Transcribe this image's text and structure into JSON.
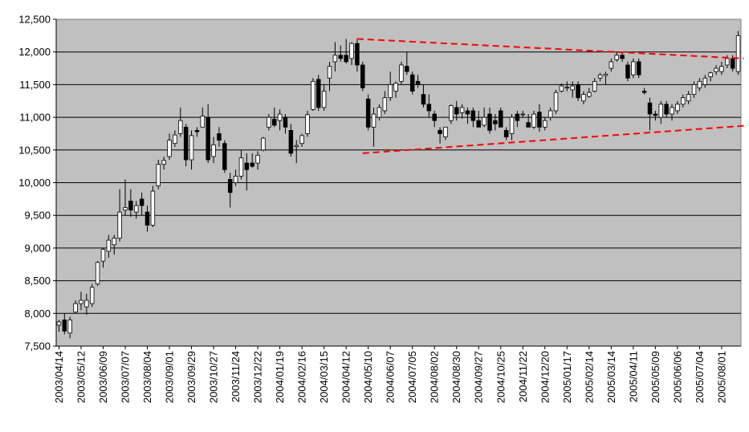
{
  "chart_data": {
    "type": "candlestick",
    "interval": "weekly",
    "title": "",
    "xlabel": "",
    "ylabel": "",
    "ylim": [
      7500,
      12500
    ],
    "y_ticks": [
      7500,
      8000,
      8500,
      9000,
      9500,
      10000,
      10500,
      11000,
      11500,
      12000,
      12500
    ],
    "y_tick_labels": [
      "7,500",
      "8,000",
      "8,500",
      "9,000",
      "9,500",
      "10,000",
      "10,500",
      "11,000",
      "11,500",
      "12,000",
      "12,500"
    ],
    "x_tick_labels": [
      "2003/04/14",
      "2003/05/12",
      "2003/06/09",
      "2003/07/07",
      "2003/08/04",
      "2003/09/01",
      "2003/09/29",
      "2003/10/27",
      "2003/11/24",
      "2003/12/22",
      "2004/01/19",
      "2004/02/16",
      "2004/03/15",
      "2004/04/12",
      "2004/05/10",
      "2004/06/07",
      "2004/07/05",
      "2004/08/02",
      "2004/08/30",
      "2004/09/27",
      "2004/10/25",
      "2004/11/22",
      "2004/12/20",
      "2005/01/17",
      "2005/02/14",
      "2005/03/14",
      "2005/04/11",
      "2005/05/09",
      "2005/06/06",
      "2005/07/04",
      "2005/08/01"
    ],
    "grid": true,
    "legend": "none",
    "colors": {
      "plot_bg": "#c0c0c0",
      "up": "#ffffff",
      "down": "#000000",
      "grid": "#000000",
      "trendline": "#ff0000"
    },
    "candles": [
      {
        "o": 7820,
        "h": 7900,
        "l": 7720,
        "c": 7870
      },
      {
        "o": 7900,
        "h": 8000,
        "l": 7680,
        "c": 7730
      },
      {
        "o": 7700,
        "h": 7950,
        "l": 7620,
        "c": 7900
      },
      {
        "o": 8020,
        "h": 8200,
        "l": 8000,
        "c": 8150
      },
      {
        "o": 8150,
        "h": 8330,
        "l": 8050,
        "c": 8200
      },
      {
        "o": 8100,
        "h": 8300,
        "l": 7980,
        "c": 8200
      },
      {
        "o": 8150,
        "h": 8450,
        "l": 8100,
        "c": 8400
      },
      {
        "o": 8450,
        "h": 8800,
        "l": 8420,
        "c": 8780
      },
      {
        "o": 8800,
        "h": 9000,
        "l": 8700,
        "c": 8980
      },
      {
        "o": 8950,
        "h": 9200,
        "l": 8850,
        "c": 9120
      },
      {
        "o": 9050,
        "h": 9200,
        "l": 8900,
        "c": 9150
      },
      {
        "o": 9150,
        "h": 9900,
        "l": 9100,
        "c": 9550
      },
      {
        "o": 9580,
        "h": 10050,
        "l": 9500,
        "c": 9620
      },
      {
        "o": 9720,
        "h": 9900,
        "l": 9480,
        "c": 9580
      },
      {
        "o": 9550,
        "h": 9720,
        "l": 9450,
        "c": 9650
      },
      {
        "o": 9750,
        "h": 9850,
        "l": 9500,
        "c": 9650
      },
      {
        "o": 9550,
        "h": 9650,
        "l": 9250,
        "c": 9350
      },
      {
        "o": 9350,
        "h": 9950,
        "l": 9320,
        "c": 9870
      },
      {
        "o": 9950,
        "h": 10350,
        "l": 9900,
        "c": 10280
      },
      {
        "o": 10280,
        "h": 10400,
        "l": 10200,
        "c": 10340
      },
      {
        "o": 10400,
        "h": 10750,
        "l": 10350,
        "c": 10650
      },
      {
        "o": 10600,
        "h": 10800,
        "l": 10550,
        "c": 10730
      },
      {
        "o": 10750,
        "h": 11150,
        "l": 10700,
        "c": 10950
      },
      {
        "o": 10850,
        "h": 10900,
        "l": 10250,
        "c": 10350
      },
      {
        "o": 10350,
        "h": 10800,
        "l": 10200,
        "c": 10720
      },
      {
        "o": 10800,
        "h": 10850,
        "l": 10700,
        "c": 10780
      },
      {
        "o": 10850,
        "h": 11150,
        "l": 10850,
        "c": 11020
      },
      {
        "o": 11000,
        "h": 11200,
        "l": 10300,
        "c": 10350
      },
      {
        "o": 10400,
        "h": 10700,
        "l": 10300,
        "c": 10580
      },
      {
        "o": 10750,
        "h": 10850,
        "l": 10550,
        "c": 10650
      },
      {
        "o": 10600,
        "h": 10650,
        "l": 10150,
        "c": 10200
      },
      {
        "o": 10050,
        "h": 10150,
        "l": 9620,
        "c": 9850
      },
      {
        "o": 10000,
        "h": 10200,
        "l": 9950,
        "c": 10100
      },
      {
        "o": 10100,
        "h": 10500,
        "l": 10050,
        "c": 10380
      },
      {
        "o": 10300,
        "h": 10450,
        "l": 9880,
        "c": 10200
      },
      {
        "o": 10300,
        "h": 10450,
        "l": 10230,
        "c": 10250
      },
      {
        "o": 10300,
        "h": 10480,
        "l": 10200,
        "c": 10420
      },
      {
        "o": 10500,
        "h": 10700,
        "l": 10480,
        "c": 10680
      },
      {
        "o": 10850,
        "h": 11050,
        "l": 10800,
        "c": 11000
      },
      {
        "o": 10970,
        "h": 11150,
        "l": 10850,
        "c": 10880
      },
      {
        "o": 10950,
        "h": 11120,
        "l": 10800,
        "c": 11050
      },
      {
        "o": 11000,
        "h": 11050,
        "l": 10750,
        "c": 10850
      },
      {
        "o": 10800,
        "h": 10900,
        "l": 10400,
        "c": 10450
      },
      {
        "o": 10550,
        "h": 10650,
        "l": 10300,
        "c": 10570
      },
      {
        "o": 10600,
        "h": 10750,
        "l": 10550,
        "c": 10720
      },
      {
        "o": 10750,
        "h": 11100,
        "l": 10700,
        "c": 11040
      },
      {
        "o": 11120,
        "h": 11600,
        "l": 11100,
        "c": 11550
      },
      {
        "o": 11580,
        "h": 11650,
        "l": 11100,
        "c": 11150
      },
      {
        "o": 11150,
        "h": 11500,
        "l": 11100,
        "c": 11400
      },
      {
        "o": 11600,
        "h": 11850,
        "l": 11400,
        "c": 11780
      },
      {
        "o": 11850,
        "h": 12150,
        "l": 11700,
        "c": 11950
      },
      {
        "o": 11950,
        "h": 12100,
        "l": 11850,
        "c": 11900
      },
      {
        "o": 11950,
        "h": 12200,
        "l": 11820,
        "c": 11850
      },
      {
        "o": 11900,
        "h": 12150,
        "l": 11800,
        "c": 12130
      },
      {
        "o": 12130,
        "h": 12200,
        "l": 11700,
        "c": 11800
      },
      {
        "o": 11800,
        "h": 11850,
        "l": 11400,
        "c": 11450
      },
      {
        "o": 11280,
        "h": 11350,
        "l": 10800,
        "c": 10850
      },
      {
        "o": 10850,
        "h": 11150,
        "l": 10550,
        "c": 11050
      },
      {
        "o": 11000,
        "h": 11200,
        "l": 10950,
        "c": 11150
      },
      {
        "o": 11100,
        "h": 11400,
        "l": 11050,
        "c": 11300
      },
      {
        "o": 11300,
        "h": 11700,
        "l": 11250,
        "c": 11500
      },
      {
        "o": 11400,
        "h": 11550,
        "l": 11300,
        "c": 11520
      },
      {
        "o": 11550,
        "h": 11850,
        "l": 11500,
        "c": 11800
      },
      {
        "o": 11780,
        "h": 12000,
        "l": 11650,
        "c": 11700
      },
      {
        "o": 11650,
        "h": 11700,
        "l": 11350,
        "c": 11400
      },
      {
        "o": 11550,
        "h": 11650,
        "l": 11450,
        "c": 11500
      },
      {
        "o": 11350,
        "h": 11500,
        "l": 11150,
        "c": 11200
      },
      {
        "o": 11200,
        "h": 11350,
        "l": 11000,
        "c": 11100
      },
      {
        "o": 11050,
        "h": 11100,
        "l": 10850,
        "c": 10950
      },
      {
        "o": 10800,
        "h": 10850,
        "l": 10600,
        "c": 10750
      },
      {
        "o": 10700,
        "h": 10850,
        "l": 10650,
        "c": 10850
      },
      {
        "o": 10950,
        "h": 11200,
        "l": 10900,
        "c": 11180
      },
      {
        "o": 11150,
        "h": 11250,
        "l": 10950,
        "c": 11050
      },
      {
        "o": 11070,
        "h": 11200,
        "l": 10980,
        "c": 11150
      },
      {
        "o": 11100,
        "h": 11150,
        "l": 10900,
        "c": 11050
      },
      {
        "o": 11100,
        "h": 11150,
        "l": 10850,
        "c": 10950
      },
      {
        "o": 10950,
        "h": 11100,
        "l": 10850,
        "c": 10850
      },
      {
        "o": 10880,
        "h": 11150,
        "l": 10850,
        "c": 11000
      },
      {
        "o": 11050,
        "h": 11150,
        "l": 10750,
        "c": 10800
      },
      {
        "o": 10950,
        "h": 11050,
        "l": 10800,
        "c": 10900
      },
      {
        "o": 11100,
        "h": 11150,
        "l": 10850,
        "c": 10850
      },
      {
        "o": 10800,
        "h": 10850,
        "l": 10650,
        "c": 10700
      },
      {
        "o": 10750,
        "h": 11050,
        "l": 10650,
        "c": 11000
      },
      {
        "o": 11050,
        "h": 11100,
        "l": 10850,
        "c": 10950
      },
      {
        "o": 11050,
        "h": 11100,
        "l": 11000,
        "c": 11050
      },
      {
        "o": 10920,
        "h": 11050,
        "l": 10850,
        "c": 10850
      },
      {
        "o": 10850,
        "h": 11100,
        "l": 10820,
        "c": 11050
      },
      {
        "o": 11080,
        "h": 11200,
        "l": 10780,
        "c": 10850
      },
      {
        "o": 10850,
        "h": 11000,
        "l": 10800,
        "c": 10950
      },
      {
        "o": 11000,
        "h": 11150,
        "l": 10950,
        "c": 11100
      },
      {
        "o": 11100,
        "h": 11420,
        "l": 11050,
        "c": 11380
      },
      {
        "o": 11400,
        "h": 11520,
        "l": 11380,
        "c": 11480
      },
      {
        "o": 11450,
        "h": 11550,
        "l": 11400,
        "c": 11460
      },
      {
        "o": 11420,
        "h": 11550,
        "l": 11300,
        "c": 11480
      },
      {
        "o": 11500,
        "h": 11550,
        "l": 11250,
        "c": 11300
      },
      {
        "o": 11250,
        "h": 11400,
        "l": 11200,
        "c": 11350
      },
      {
        "o": 11320,
        "h": 11450,
        "l": 11300,
        "c": 11380
      },
      {
        "o": 11400,
        "h": 11600,
        "l": 11380,
        "c": 11550
      },
      {
        "o": 11600,
        "h": 11680,
        "l": 11550,
        "c": 11650
      },
      {
        "o": 11640,
        "h": 11700,
        "l": 11500,
        "c": 11660
      },
      {
        "o": 11750,
        "h": 11900,
        "l": 11700,
        "c": 11850
      },
      {
        "o": 11880,
        "h": 12000,
        "l": 11850,
        "c": 11950
      },
      {
        "o": 11950,
        "h": 12000,
        "l": 11850,
        "c": 11900
      },
      {
        "o": 11800,
        "h": 11850,
        "l": 11550,
        "c": 11600
      },
      {
        "o": 11650,
        "h": 11900,
        "l": 11600,
        "c": 11850
      },
      {
        "o": 11850,
        "h": 11900,
        "l": 11600,
        "c": 11650
      },
      {
        "o": 11400,
        "h": 11450,
        "l": 11350,
        "c": 11380
      },
      {
        "o": 11220,
        "h": 11300,
        "l": 10800,
        "c": 11050
      },
      {
        "o": 11050,
        "h": 11100,
        "l": 10950,
        "c": 11030
      },
      {
        "o": 11000,
        "h": 11250,
        "l": 10900,
        "c": 11200
      },
      {
        "o": 11200,
        "h": 11250,
        "l": 11000,
        "c": 11050
      },
      {
        "o": 11050,
        "h": 11200,
        "l": 10950,
        "c": 11150
      },
      {
        "o": 11100,
        "h": 11250,
        "l": 11050,
        "c": 11200
      },
      {
        "o": 11200,
        "h": 11350,
        "l": 11150,
        "c": 11300
      },
      {
        "o": 11250,
        "h": 11400,
        "l": 11200,
        "c": 11350
      },
      {
        "o": 11350,
        "h": 11550,
        "l": 11300,
        "c": 11500
      },
      {
        "o": 11450,
        "h": 11600,
        "l": 11400,
        "c": 11550
      },
      {
        "o": 11500,
        "h": 11650,
        "l": 11450,
        "c": 11600
      },
      {
        "o": 11620,
        "h": 11700,
        "l": 11550,
        "c": 11680
      },
      {
        "o": 11700,
        "h": 11800,
        "l": 11650,
        "c": 11750
      },
      {
        "o": 11700,
        "h": 11850,
        "l": 11650,
        "c": 11780
      },
      {
        "o": 11800,
        "h": 11950,
        "l": 11750,
        "c": 11900
      },
      {
        "o": 11900,
        "h": 11950,
        "l": 11700,
        "c": 11750
      },
      {
        "o": 11700,
        "h": 12320,
        "l": 11650,
        "c": 12250
      }
    ],
    "trendlines": [
      {
        "from": {
          "index": 54,
          "y": 12200
        },
        "to": {
          "index": 124,
          "y": 11900
        }
      },
      {
        "from": {
          "index": 55,
          "y": 10450
        },
        "to": {
          "index": 124,
          "y": 10870
        }
      }
    ]
  }
}
